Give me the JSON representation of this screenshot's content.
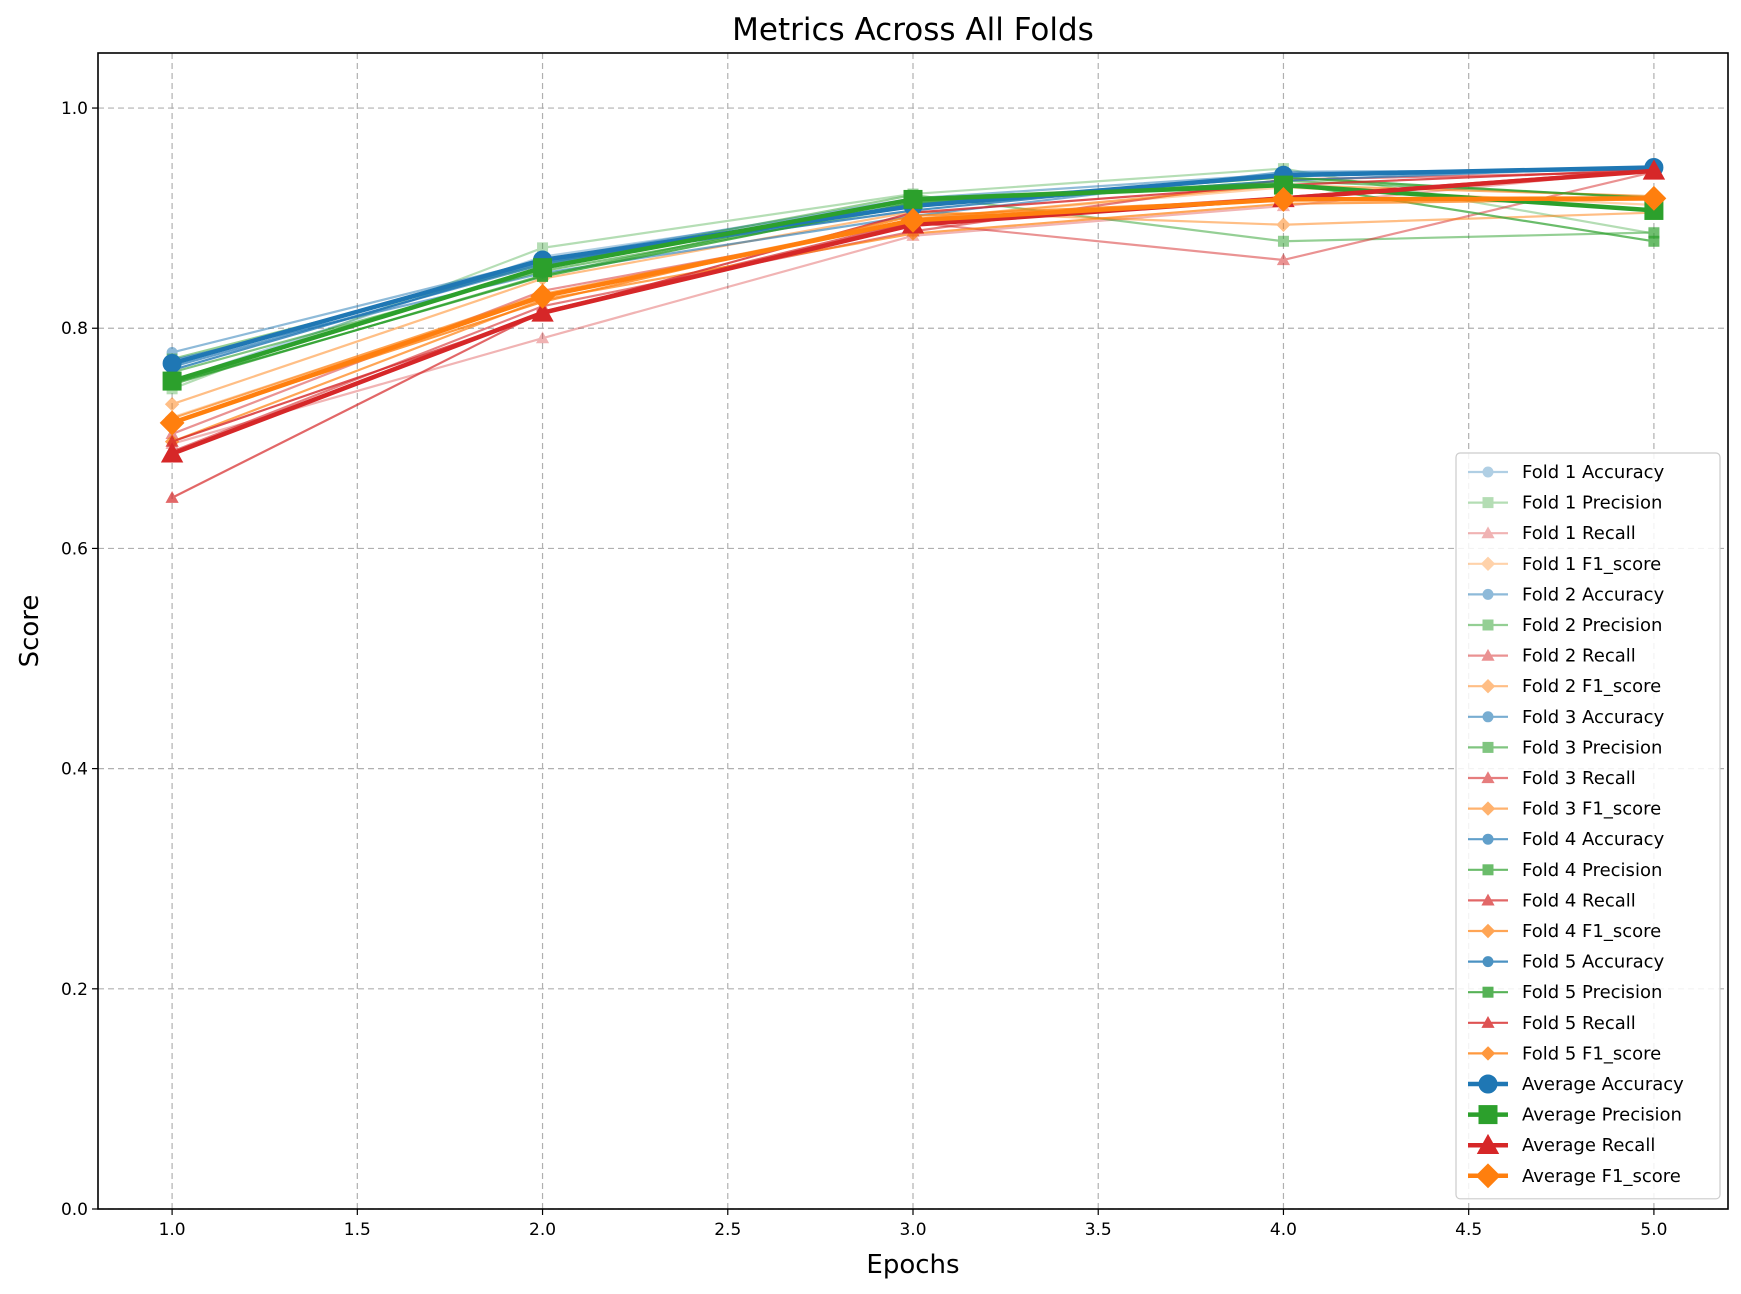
{
  "chart_data": {
    "type": "line",
    "title": "Metrics Across All Folds",
    "xlabel": "Epochs",
    "ylabel": "Score",
    "xlim": [
      0.8,
      5.2
    ],
    "ylim": [
      0.0,
      1.05
    ],
    "xticks": [
      1.0,
      1.5,
      2.0,
      2.5,
      3.0,
      3.5,
      4.0,
      4.5,
      5.0
    ],
    "yticks": [
      0.0,
      0.2,
      0.4,
      0.6,
      0.8,
      1.0
    ],
    "xtick_labels": [
      "1.0",
      "1.5",
      "2.0",
      "2.5",
      "3.0",
      "3.5",
      "4.0",
      "4.5",
      "5.0"
    ],
    "ytick_labels": [
      "0.0",
      "0.2",
      "0.4",
      "0.6",
      "0.8",
      "1.0"
    ],
    "grid": true,
    "legend_position": "lower right",
    "x": [
      1,
      2,
      3,
      4,
      5
    ],
    "colors": {
      "Accuracy": "#1f77b4",
      "Precision": "#2ca02c",
      "Recall": "#d62728",
      "F1_score": "#ff7f0e"
    },
    "series": [
      {
        "name": "Fold 1 Accuracy",
        "metric": "Accuracy",
        "marker": "circle",
        "style": "fold",
        "opacity": 0.35,
        "values": [
          0.752,
          0.865,
          0.914,
          0.938,
          0.945
        ]
      },
      {
        "name": "Fold 1 Precision",
        "metric": "Precision",
        "marker": "square",
        "style": "fold",
        "opacity": 0.35,
        "values": [
          0.745,
          0.873,
          0.922,
          0.945,
          0.886
        ]
      },
      {
        "name": "Fold 1 Recall",
        "metric": "Recall",
        "marker": "triangle",
        "style": "fold",
        "opacity": 0.35,
        "values": [
          0.695,
          0.791,
          0.884,
          0.911,
          0.944
        ]
      },
      {
        "name": "Fold 1 F1_score",
        "metric": "F1_score",
        "marker": "diamond",
        "style": "fold",
        "opacity": 0.35,
        "values": [
          0.719,
          0.83,
          0.899,
          0.928,
          0.912
        ]
      },
      {
        "name": "Fold 2 Accuracy",
        "metric": "Accuracy",
        "marker": "circle",
        "style": "fold",
        "opacity": 0.5,
        "values": [
          0.778,
          0.862,
          0.918,
          0.94,
          0.946
        ]
      },
      {
        "name": "Fold 2 Precision",
        "metric": "Precision",
        "marker": "square",
        "style": "fold",
        "opacity": 0.5,
        "values": [
          0.772,
          0.858,
          0.921,
          0.879,
          0.887
        ]
      },
      {
        "name": "Fold 2 Recall",
        "metric": "Recall",
        "marker": "triangle",
        "style": "fold",
        "opacity": 0.5,
        "values": [
          0.704,
          0.834,
          0.896,
          0.862,
          0.942
        ]
      },
      {
        "name": "Fold 2 F1_score",
        "metric": "F1_score",
        "marker": "diamond",
        "style": "fold",
        "opacity": 0.5,
        "values": [
          0.731,
          0.845,
          0.906,
          0.894,
          0.905
        ]
      },
      {
        "name": "Fold 3 Accuracy",
        "metric": "Accuracy",
        "marker": "circle",
        "style": "fold",
        "opacity": 0.6,
        "values": [
          0.771,
          0.85,
          0.902,
          0.942,
          0.944
        ]
      },
      {
        "name": "Fold 3 Precision",
        "metric": "Precision",
        "marker": "square",
        "style": "fold",
        "opacity": 0.6,
        "values": [
          0.76,
          0.852,
          0.911,
          0.934,
          0.919
        ]
      },
      {
        "name": "Fold 3 Recall",
        "metric": "Recall",
        "marker": "triangle",
        "style": "fold",
        "opacity": 0.6,
        "values": [
          0.688,
          0.82,
          0.888,
          0.935,
          0.942
        ]
      },
      {
        "name": "Fold 3 F1_score",
        "metric": "F1_score",
        "marker": "diamond",
        "style": "fold",
        "opacity": 0.6,
        "values": [
          0.718,
          0.831,
          0.899,
          0.93,
          0.92
        ]
      },
      {
        "name": "Fold 4 Accuracy",
        "metric": "Accuracy",
        "marker": "circle",
        "style": "fold",
        "opacity": 0.7,
        "values": [
          0.765,
          0.858,
          0.911,
          0.934,
          0.947
        ]
      },
      {
        "name": "Fold 4 Precision",
        "metric": "Precision",
        "marker": "square",
        "style": "fold",
        "opacity": 0.7,
        "values": [
          0.749,
          0.848,
          0.918,
          0.932,
          0.879
        ]
      },
      {
        "name": "Fold 4 Recall",
        "metric": "Recall",
        "marker": "triangle",
        "style": "fold",
        "opacity": 0.7,
        "values": [
          0.646,
          0.815,
          0.897,
          0.919,
          0.944
        ]
      },
      {
        "name": "Fold 4 F1_score",
        "metric": "F1_score",
        "marker": "diamond",
        "style": "fold",
        "opacity": 0.7,
        "values": [
          0.697,
          0.826,
          0.886,
          0.913,
          0.917
        ]
      },
      {
        "name": "Fold 5 Accuracy",
        "metric": "Accuracy",
        "marker": "circle",
        "style": "fold",
        "opacity": 0.8,
        "values": [
          0.762,
          0.86,
          0.907,
          0.94,
          0.946
        ]
      },
      {
        "name": "Fold 5 Precision",
        "metric": "Precision",
        "marker": "square",
        "style": "fold",
        "opacity": 0.8,
        "values": [
          0.75,
          0.847,
          0.914,
          0.937,
          0.918
        ]
      },
      {
        "name": "Fold 5 Recall",
        "metric": "Recall",
        "marker": "triangle",
        "style": "fold",
        "opacity": 0.8,
        "values": [
          0.697,
          0.813,
          0.905,
          0.93,
          0.944
        ]
      },
      {
        "name": "Fold 5 F1_score",
        "metric": "F1_score",
        "marker": "diamond",
        "style": "fold",
        "opacity": 0.8,
        "values": [
          0.715,
          0.824,
          0.902,
          0.917,
          0.918
        ]
      },
      {
        "name": "Average Accuracy",
        "metric": "Accuracy",
        "marker": "circle",
        "style": "average",
        "opacity": 1.0,
        "values": [
          0.768,
          0.862,
          0.911,
          0.939,
          0.946
        ]
      },
      {
        "name": "Average Precision",
        "metric": "Precision",
        "marker": "square",
        "style": "average",
        "opacity": 1.0,
        "values": [
          0.752,
          0.855,
          0.917,
          0.93,
          0.907
        ]
      },
      {
        "name": "Average Recall",
        "metric": "Recall",
        "marker": "triangle",
        "style": "average",
        "opacity": 1.0,
        "values": [
          0.686,
          0.814,
          0.894,
          0.918,
          0.943
        ]
      },
      {
        "name": "Average F1_score",
        "metric": "F1_score",
        "marker": "diamond",
        "style": "average",
        "opacity": 1.0,
        "values": [
          0.714,
          0.829,
          0.898,
          0.917,
          0.918
        ]
      }
    ]
  }
}
